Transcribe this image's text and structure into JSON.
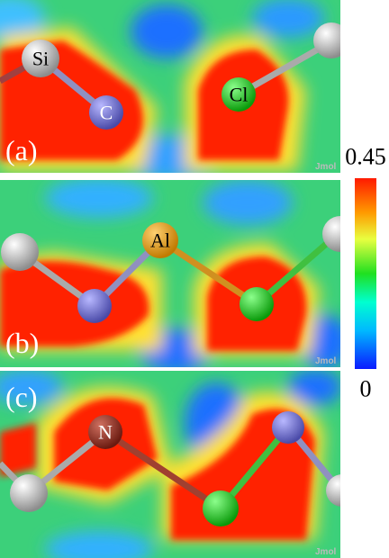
{
  "panels": [
    {
      "label": "(a)",
      "atoms": [
        "Si",
        "C",
        "Cl"
      ],
      "watermark": "Jmol"
    },
    {
      "label": "(b)",
      "atoms": [
        "Al"
      ],
      "watermark": "Jmol"
    },
    {
      "label": "(c)",
      "atoms": [
        "N"
      ],
      "watermark": "Jmol"
    }
  ],
  "colorbar": {
    "lim": [
      0,
      0.45
    ],
    "ticks": [
      0,
      0.45
    ]
  }
}
